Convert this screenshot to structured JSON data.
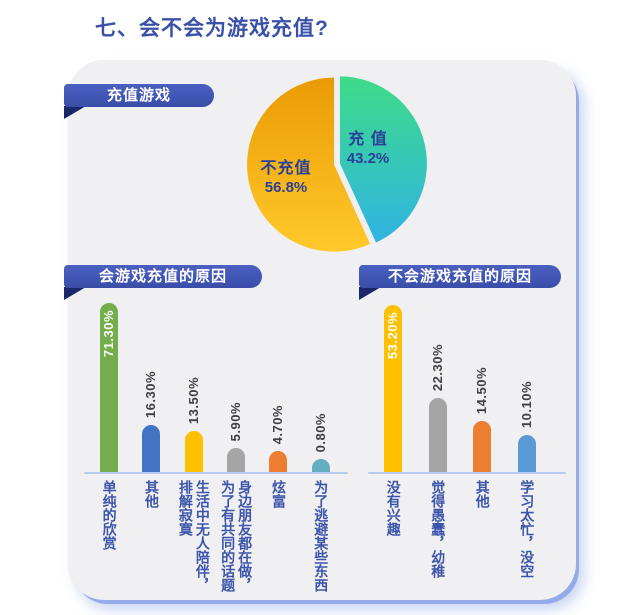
{
  "page": {
    "title": "七、会不会为游戏充值?"
  },
  "colors": {
    "title_text": "#3a51a9",
    "banner_bg": "#3a4ea8",
    "banner_fold": "#1a2768",
    "card_bg": "#f0f0f2",
    "card_edge_glow": "#93abe8",
    "axis_line": "#b5cbf0",
    "value_label": "#3f3f3f",
    "category_label": "#3c55aa",
    "pie_label_text": "#2a3f97"
  },
  "chart_data": [
    {
      "type": "pie",
      "title": "充值游戏",
      "legend_position": "labels-on-slices",
      "slices": [
        {
          "label": "充 值",
          "value": 43.2,
          "display": "43.2%",
          "color_top": "#3fdb89",
          "color_bottom": "#2fb4e2"
        },
        {
          "label": "不充值",
          "value": 56.8,
          "display": "56.8%",
          "color_top": "#ea9b04",
          "color_bottom": "#ffc92b"
        }
      ]
    },
    {
      "type": "bar",
      "title": "会游戏充值的原因",
      "categories": [
        "单纯的欣赏",
        "其他",
        "生活中无人陪伴，排解寂寞",
        "身边朋友都在做，为了有共同的话题",
        "炫富",
        "为了逃避某些东西"
      ],
      "values": [
        71.3,
        16.3,
        13.5,
        5.9,
        4.7,
        0.8
      ],
      "value_labels": [
        "71.30%",
        "16.30%",
        "13.50%",
        "5.90%",
        "4.70%",
        "0.80%"
      ],
      "bar_colors": [
        "#74ad4b",
        "#4472c4",
        "#ffc000",
        "#a5a5a5",
        "#ed7d31",
        "#64aec2"
      ],
      "xlabel": "",
      "ylabel": "",
      "grid": false,
      "ylim": [
        0,
        80
      ]
    },
    {
      "type": "bar",
      "title": "不会游戏充值的原因",
      "categories": [
        "没有兴趣",
        "觉得愚蠢，幼稚",
        "其他",
        "学习太忙，没空"
      ],
      "values": [
        53.2,
        22.3,
        14.5,
        10.1
      ],
      "value_labels": [
        "53.20%",
        "22.30%",
        "14.50%",
        "10.10%"
      ],
      "bar_colors": [
        "#ffc000",
        "#a5a5a5",
        "#ed7d31",
        "#5b9bd5"
      ],
      "xlabel": "",
      "ylabel": "",
      "grid": false,
      "ylim": [
        0,
        60
      ]
    }
  ]
}
